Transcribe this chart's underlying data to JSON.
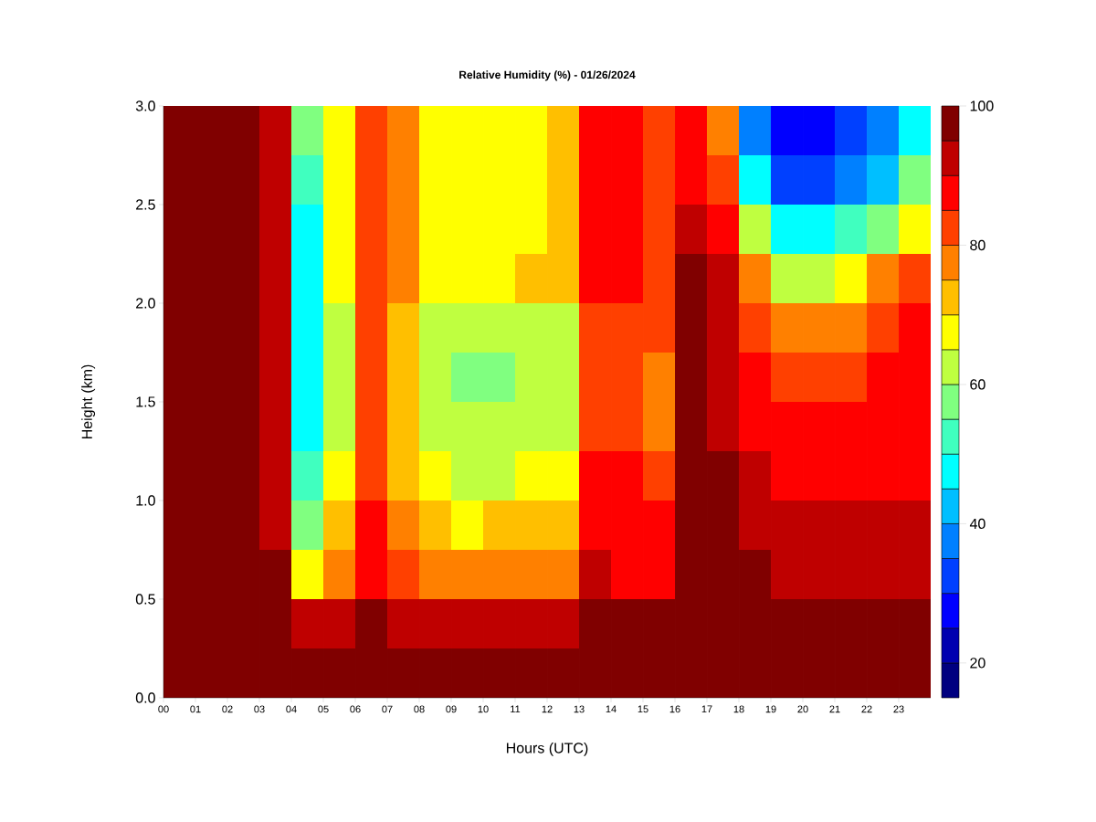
{
  "chart_data": {
    "type": "heatmap",
    "title": "Relative Humidity (%) - 01/26/2024",
    "xlabel": "Hours (UTC)",
    "ylabel": "Height (km)",
    "x": [
      0.5,
      1.5,
      2.5,
      3.5,
      4.5,
      5.5,
      6.5,
      7.5,
      8.5,
      9.5,
      10.5,
      11.5,
      12.5,
      13.5,
      14.5,
      15.5,
      16.5,
      17.5,
      18.5,
      19.5,
      20.5,
      21.5,
      22.5,
      23.5
    ],
    "xlim": [
      0,
      24
    ],
    "xticks": [
      {
        "value": 0,
        "label": "00"
      },
      {
        "value": 1,
        "label": "01"
      },
      {
        "value": 2,
        "label": "02"
      },
      {
        "value": 3,
        "label": "03"
      },
      {
        "value": 4,
        "label": "04"
      },
      {
        "value": 5,
        "label": "05"
      },
      {
        "value": 6,
        "label": "06"
      },
      {
        "value": 7,
        "label": "07"
      },
      {
        "value": 8,
        "label": "08"
      },
      {
        "value": 9,
        "label": "09"
      },
      {
        "value": 10,
        "label": "10"
      },
      {
        "value": 11,
        "label": "11"
      },
      {
        "value": 12,
        "label": "12"
      },
      {
        "value": 13,
        "label": "13"
      },
      {
        "value": 14,
        "label": "14"
      },
      {
        "value": 15,
        "label": "15"
      },
      {
        "value": 16,
        "label": "16"
      },
      {
        "value": 17,
        "label": "17"
      },
      {
        "value": 18,
        "label": "18"
      },
      {
        "value": 19,
        "label": "19"
      },
      {
        "value": 20,
        "label": "20"
      },
      {
        "value": 21,
        "label": "21"
      },
      {
        "value": 22,
        "label": "22"
      },
      {
        "value": 23,
        "label": "23"
      }
    ],
    "ylim": [
      0,
      3
    ],
    "yticks": [
      {
        "value": 0,
        "label": "0.0"
      },
      {
        "value": 0.5,
        "label": "0.5"
      },
      {
        "value": 1,
        "label": "1.0"
      },
      {
        "value": 1.5,
        "label": "1.5"
      },
      {
        "value": 2,
        "label": "2.0"
      },
      {
        "value": 2.5,
        "label": "2.5"
      },
      {
        "value": 3,
        "label": "3.0"
      }
    ],
    "clim": [
      15,
      100
    ],
    "cticks": [
      20,
      40,
      60,
      80,
      100
    ],
    "colors": [
      "#000080",
      "#0000b0",
      "#0000ff",
      "#0040ff",
      "#0080ff",
      "#00bfff",
      "#00ffff",
      "#40ffbf",
      "#80ff80",
      "#bfff40",
      "#ffff00",
      "#ffbf00",
      "#ff8000",
      "#ff4000",
      "#ff0000",
      "#bf0000",
      "#800000"
    ],
    "cells": [
      [
        100,
        100,
        100,
        93,
        55,
        65,
        80,
        75,
        65,
        65,
        65,
        68,
        70,
        85,
        85,
        82,
        85,
        78,
        35,
        25,
        25,
        30,
        35,
        45
      ],
      [
        100,
        100,
        100,
        93,
        50,
        65,
        80,
        75,
        65,
        65,
        65,
        68,
        70,
        85,
        85,
        82,
        88,
        82,
        45,
        33,
        33,
        38,
        42,
        55
      ],
      [
        100,
        100,
        100,
        93,
        48,
        68,
        80,
        75,
        68,
        65,
        65,
        68,
        70,
        85,
        85,
        82,
        92,
        88,
        60,
        45,
        45,
        50,
        58,
        68
      ],
      [
        100,
        100,
        100,
        93,
        48,
        68,
        82,
        75,
        68,
        68,
        68,
        70,
        72,
        85,
        85,
        82,
        95,
        92,
        75,
        62,
        62,
        68,
        75,
        80
      ],
      [
        100,
        100,
        100,
        93,
        47,
        62,
        80,
        70,
        62,
        60,
        60,
        62,
        62,
        82,
        82,
        80,
        95,
        90,
        82,
        75,
        75,
        78,
        82,
        85
      ],
      [
        100,
        100,
        100,
        93,
        45,
        62,
        80,
        70,
        62,
        58,
        58,
        60,
        60,
        82,
        80,
        75,
        95,
        90,
        85,
        80,
        80,
        82,
        85,
        85
      ],
      [
        100,
        100,
        100,
        93,
        47,
        62,
        80,
        70,
        62,
        60,
        60,
        62,
        62,
        82,
        82,
        75,
        97,
        92,
        88,
        85,
        85,
        86,
        87,
        88
      ],
      [
        100,
        100,
        100,
        93,
        52,
        65,
        82,
        72,
        65,
        63,
        63,
        65,
        67,
        85,
        85,
        80,
        97,
        95,
        90,
        88,
        88,
        88,
        88,
        88
      ],
      [
        100,
        100,
        100,
        93,
        58,
        72,
        85,
        78,
        70,
        68,
        70,
        72,
        72,
        88,
        88,
        85,
        100,
        97,
        92,
        90,
        90,
        90,
        90,
        90
      ],
      [
        100,
        100,
        100,
        95,
        65,
        75,
        88,
        80,
        75,
        75,
        75,
        77,
        77,
        90,
        88,
        85,
        100,
        98,
        95,
        92,
        92,
        93,
        93,
        93
      ],
      [
        100,
        100,
        100,
        100,
        92,
        90,
        95,
        92,
        90,
        90,
        90,
        90,
        90,
        96,
        95,
        95,
        100,
        100,
        100,
        98,
        98,
        98,
        98,
        98
      ],
      [
        97,
        97,
        97,
        100,
        100,
        100,
        100,
        100,
        100,
        100,
        100,
        100,
        100,
        100,
        100,
        100,
        100,
        100,
        100,
        100,
        100,
        100,
        100,
        100
      ]
    ]
  }
}
